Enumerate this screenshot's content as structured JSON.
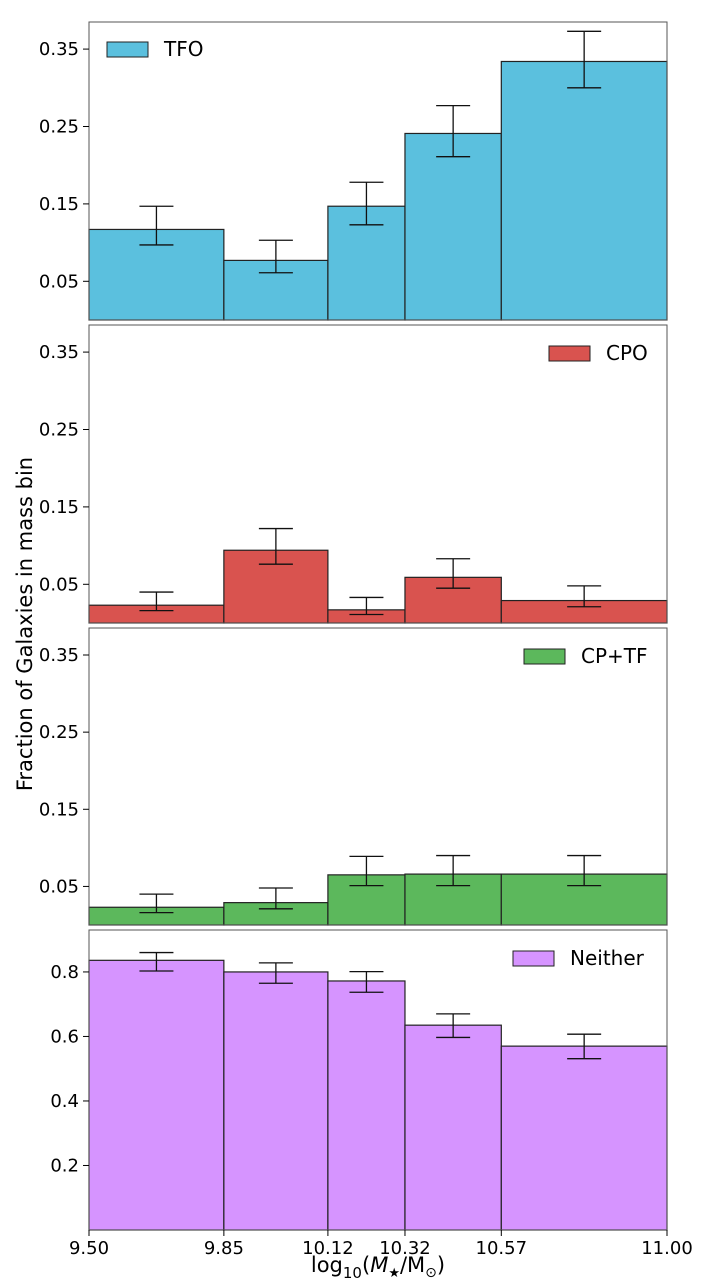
{
  "figure": {
    "ylabel": "Fraction of Galaxies in mass bin",
    "xlabel_parts": {
      "prefix": "log",
      "sub10": "10",
      "open": "(",
      "M": "M",
      "star": "★",
      "slash": "/M",
      "sun": "⊙",
      "close": ")"
    }
  },
  "chart_data": [
    {
      "type": "bar",
      "legend": "TFO",
      "legend_position": "top-left",
      "color": "#5bc0de",
      "bin_edges": [
        9.5,
        9.85,
        10.12,
        10.32,
        10.57,
        11.0
      ],
      "values": [
        0.117,
        0.077,
        0.147,
        0.241,
        0.334
      ],
      "err_low": [
        0.097,
        0.061,
        0.123,
        0.211,
        0.3
      ],
      "err_high": [
        0.147,
        0.103,
        0.178,
        0.277,
        0.373
      ],
      "ylim": [
        0.0,
        0.385
      ],
      "yticks": [
        "0.05",
        "0.15",
        "0.25",
        "0.35"
      ],
      "ytick_values": [
        0.05,
        0.15,
        0.25,
        0.35
      ]
    },
    {
      "type": "bar",
      "legend": "CPO",
      "legend_position": "top-right",
      "color": "#d9534f",
      "bin_edges": [
        9.5,
        9.85,
        10.12,
        10.32,
        10.57,
        11.0
      ],
      "values": [
        0.023,
        0.094,
        0.017,
        0.059,
        0.029
      ],
      "err_low": [
        0.016,
        0.076,
        0.011,
        0.045,
        0.021
      ],
      "err_high": [
        0.04,
        0.122,
        0.033,
        0.083,
        0.048
      ],
      "ylim": [
        0.0,
        0.385
      ],
      "yticks": [
        "0.05",
        "0.15",
        "0.25",
        "0.35"
      ],
      "ytick_values": [
        0.05,
        0.15,
        0.25,
        0.35
      ]
    },
    {
      "type": "bar",
      "legend": "CP+TF",
      "legend_position": "top-right",
      "color": "#5cb85c",
      "bin_edges": [
        9.5,
        9.85,
        10.12,
        10.32,
        10.57,
        11.0
      ],
      "values": [
        0.023,
        0.029,
        0.065,
        0.066,
        0.066
      ],
      "err_low": [
        0.016,
        0.021,
        0.051,
        0.051,
        0.051
      ],
      "err_high": [
        0.04,
        0.048,
        0.089,
        0.09,
        0.09
      ],
      "ylim": [
        0.0,
        0.385
      ],
      "yticks": [
        "0.05",
        "0.15",
        "0.25",
        "0.35"
      ],
      "ytick_values": [
        0.05,
        0.15,
        0.25,
        0.35
      ]
    },
    {
      "type": "bar",
      "legend": "Neither",
      "legend_position": "top-right",
      "color": "#d694ff",
      "bin_edges": [
        9.5,
        9.85,
        10.12,
        10.32,
        10.57,
        11.0
      ],
      "values": [
        0.836,
        0.8,
        0.772,
        0.635,
        0.57
      ],
      "err_low": [
        0.803,
        0.765,
        0.737,
        0.597,
        0.531
      ],
      "err_high": [
        0.86,
        0.828,
        0.801,
        0.67,
        0.607
      ],
      "ylim": [
        0.0,
        0.93
      ],
      "yticks": [
        "0.2",
        "0.4",
        "0.6",
        "0.8"
      ],
      "ytick_values": [
        0.2,
        0.4,
        0.6,
        0.8
      ],
      "xticks": [
        "9.50",
        "9.85",
        "10.12",
        "10.32",
        "10.57",
        "11.00"
      ],
      "xtick_values": [
        9.5,
        9.85,
        10.12,
        10.32,
        10.57,
        11.0
      ],
      "xlim": [
        9.5,
        11.0
      ]
    }
  ]
}
